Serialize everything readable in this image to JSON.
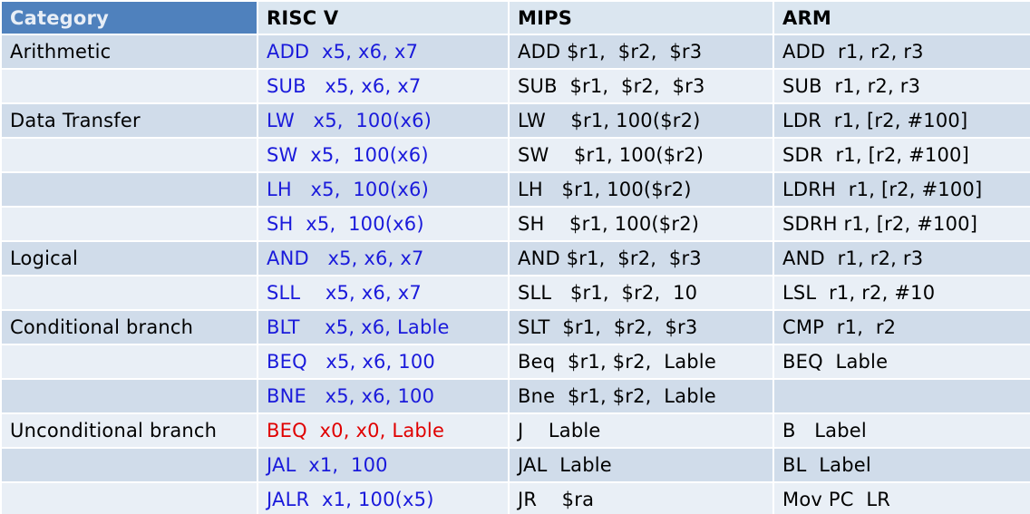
{
  "headers": [
    "Category",
    "RISC V",
    "MIPS",
    "ARM"
  ],
  "colors": {
    "header_category_bg": "#4f81bd",
    "header_bg": "#dbe6f0",
    "row_band_dark": "#d0dcea",
    "row_band_light": "#e9eff6",
    "riscv_text": "#1a1adb",
    "riscv_highlight": "#e00000"
  },
  "rows": [
    {
      "category": "Arithmetic",
      "riscv": "ADD  x5, x6, x7",
      "mips": "ADD $r1,  $r2,  $r3",
      "arm": "ADD  r1, r2, r3"
    },
    {
      "category": "",
      "riscv": "SUB   x5, x6, x7",
      "mips": "SUB  $r1,  $r2,  $r3",
      "arm": "SUB  r1, r2, r3"
    },
    {
      "category": "Data Transfer",
      "riscv": "LW   x5,  100(x6)",
      "mips": "LW    $r1, 100($r2)",
      "arm": "LDR  r1, [r2, #100]"
    },
    {
      "category": "",
      "riscv": "SW  x5,  100(x6)",
      "mips": "SW    $r1, 100($r2)",
      "arm": "SDR  r1, [r2, #100]"
    },
    {
      "category": "",
      "riscv": "LH   x5,  100(x6)",
      "mips": "LH   $r1, 100($r2)",
      "arm": "LDRH  r1, [r2, #100]"
    },
    {
      "category": "",
      "riscv": "SH  x5,  100(x6)",
      "mips": "SH    $r1, 100($r2)",
      "arm": "SDRH r1, [r2, #100]"
    },
    {
      "category": "Logical",
      "riscv": "AND   x5, x6, x7",
      "mips": "AND $r1,  $r2,  $r3",
      "arm": "AND  r1, r2, r3"
    },
    {
      "category": "",
      "riscv": "SLL    x5, x6, x7",
      "mips": "SLL   $r1,  $r2,  10",
      "arm": "LSL  r1, r2, #10"
    },
    {
      "category": "Conditional branch",
      "riscv": "BLT    x5, x6, Lable",
      "mips": "SLT  $r1,  $r2,  $r3",
      "arm": "CMP  r1,  r2"
    },
    {
      "category": "",
      "riscv": "BEQ   x5, x6, 100",
      "mips": "Beq  $r1, $r2,  Lable",
      "arm": "BEQ  Lable"
    },
    {
      "category": "",
      "riscv": "BNE   x5, x6, 100",
      "mips": "Bne  $r1, $r2,  Lable",
      "arm": ""
    },
    {
      "category": "Unconditional branch",
      "riscv": "BEQ  x0, x0, Lable",
      "mips": "J    Lable",
      "arm": "B   Label",
      "riscv_highlight": true
    },
    {
      "category": "",
      "riscv": "JAL  x1,  100",
      "mips": "JAL  Lable",
      "arm": "BL  Label"
    },
    {
      "category": "",
      "riscv": "JALR  x1, 100(x5)",
      "mips": "JR    $ra",
      "arm": "Mov PC  LR"
    }
  ]
}
